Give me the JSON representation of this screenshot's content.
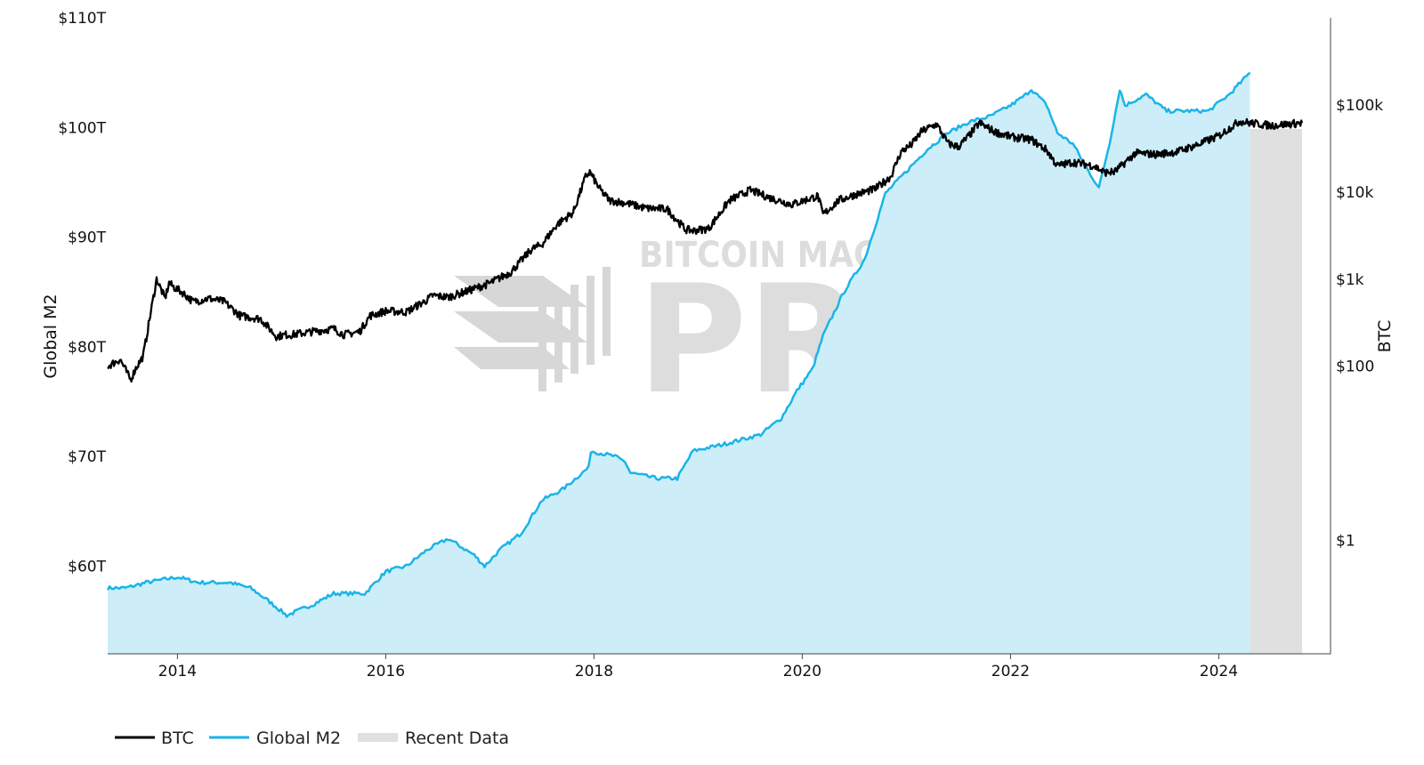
{
  "watermark": {
    "line1": "BITCOIN MAGAZINE",
    "line2": "PRO",
    "reg_mark": "®"
  },
  "chart_data": {
    "type": "line",
    "title": "",
    "xlabel": "",
    "x_ticks": [
      "2014",
      "2016",
      "2018",
      "2020",
      "2022",
      "2024"
    ],
    "x_range": [
      2013.33,
      2024.8
    ],
    "left_axis": {
      "label": "Global M2",
      "unit": "USD",
      "scale": "linear",
      "range": [
        52,
        110
      ],
      "ticks": [
        60,
        70,
        80,
        90,
        100,
        110
      ],
      "tick_labels": [
        "$60T",
        "$70T",
        "$80T",
        "$90T",
        "$100T",
        "$110T"
      ]
    },
    "right_axis": {
      "label": "BTC",
      "unit": "USD",
      "scale": "log",
      "range": [
        0.05,
        1000000
      ],
      "ticks": [
        1,
        100,
        1000,
        10000,
        100000
      ],
      "tick_labels": [
        "$1",
        "$100",
        "$1k",
        "$10k",
        "$100k"
      ]
    },
    "grid": false,
    "legend_position": "bottom-left",
    "legend": [
      "BTC",
      "Global M2",
      "Recent Data"
    ],
    "recent_data_region": [
      2024.3,
      2024.8
    ],
    "colors": {
      "btc": "#000000",
      "m2_line": "#1ab4e8",
      "m2_fill": "#cdeef9",
      "recent": "#e0e0e0"
    },
    "series": [
      {
        "name": "BTC",
        "axis": "right",
        "x": [
          2013.33,
          2013.45,
          2013.55,
          2013.6,
          2013.67,
          2013.8,
          2013.88,
          2013.92,
          2013.97,
          2014.05,
          2014.15,
          2014.3,
          2014.45,
          2014.6,
          2014.8,
          2014.95,
          2015.04,
          2015.1,
          2015.3,
          2015.5,
          2015.6,
          2015.75,
          2015.85,
          2016.0,
          2016.2,
          2016.4,
          2016.45,
          2016.6,
          2016.8,
          2017.0,
          2017.2,
          2017.4,
          2017.5,
          2017.65,
          2017.8,
          2017.92,
          2017.96,
          2018.05,
          2018.15,
          2018.3,
          2018.5,
          2018.7,
          2018.88,
          2018.95,
          2019.1,
          2019.3,
          2019.5,
          2019.7,
          2019.9,
          2020.15,
          2020.2,
          2020.35,
          2020.5,
          2020.7,
          2020.85,
          2020.95,
          2021.05,
          2021.15,
          2021.29,
          2021.4,
          2021.5,
          2021.6,
          2021.7,
          2021.85,
          2022.0,
          2022.2,
          2022.35,
          2022.45,
          2022.6,
          2022.8,
          2022.9,
          2023.0,
          2023.2,
          2023.4,
          2023.6,
          2023.8,
          2024.0,
          2024.2,
          2024.3,
          2024.5,
          2024.65,
          2024.8
        ],
        "values": [
          100,
          120,
          70,
          95,
          130,
          1000,
          600,
          900,
          800,
          700,
          550,
          600,
          550,
          380,
          350,
          220,
          230,
          230,
          250,
          270,
          230,
          250,
          380,
          430,
          420,
          580,
          650,
          620,
          740,
          900,
          1200,
          2200,
          2500,
          4300,
          5800,
          15000,
          17000,
          11000,
          8000,
          7500,
          6500,
          6400,
          3700,
          3600,
          3800,
          8000,
          10500,
          8500,
          7200,
          9000,
          5500,
          8000,
          9300,
          10800,
          15000,
          29000,
          35000,
          50000,
          60000,
          36000,
          33000,
          44000,
          62000,
          49000,
          43000,
          40000,
          30000,
          20000,
          22000,
          20000,
          16800,
          17000,
          28000,
          27000,
          29000,
          35000,
          44000,
          65000,
          62000,
          58000,
          60000,
          62000
        ]
      },
      {
        "name": "Global M2",
        "axis": "left",
        "x": [
          2013.33,
          2013.5,
          2013.7,
          2014.0,
          2014.2,
          2014.5,
          2014.7,
          2014.85,
          2015.05,
          2015.3,
          2015.5,
          2015.8,
          2016.0,
          2016.2,
          2016.4,
          2016.6,
          2016.85,
          2016.95,
          2017.1,
          2017.3,
          2017.5,
          2017.7,
          2017.95,
          2017.97,
          2018.2,
          2018.3,
          2018.35,
          2018.6,
          2018.8,
          2018.95,
          2019.2,
          2019.4,
          2019.6,
          2019.8,
          2019.95,
          2020.1,
          2020.2,
          2020.25,
          2020.4,
          2020.6,
          2020.8,
          2021.0,
          2021.2,
          2021.4,
          2021.6,
          2021.8,
          2022.0,
          2022.15,
          2022.2,
          2022.35,
          2022.45,
          2022.6,
          2022.75,
          2022.85,
          2022.95,
          2023.05,
          2023.1,
          2023.3,
          2023.5,
          2023.7,
          2023.9,
          2024.1,
          2024.3
        ],
        "values": [
          58,
          58,
          58.5,
          59,
          58.5,
          58.5,
          58,
          57,
          55.5,
          56.5,
          57.5,
          57.5,
          59.5,
          60,
          61.5,
          62.5,
          61,
          60,
          61.5,
          63,
          66,
          67,
          69,
          70.5,
          70,
          69.5,
          68.5,
          68,
          68,
          70.5,
          71,
          71.5,
          72,
          73.5,
          76,
          78,
          81,
          82,
          85,
          88,
          94,
          96,
          98,
          99.5,
          100.5,
          101,
          102,
          103,
          103.5,
          102,
          99.5,
          98.5,
          96,
          94.5,
          98.5,
          103.5,
          102,
          103,
          101.5,
          101.5,
          101.5,
          103,
          105
        ]
      }
    ]
  }
}
